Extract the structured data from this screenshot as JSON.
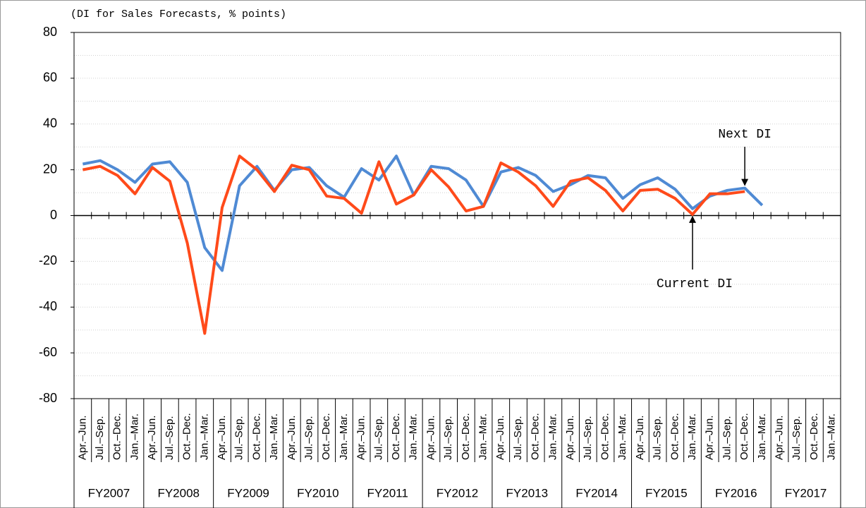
{
  "chart_data": {
    "type": "line",
    "y_axis_label": "(DI for Sales Forecasts, % points)",
    "categories": [
      "Apr.–Jun.",
      "Jul.–Sep.",
      "Oct.–Dec.",
      "Jan.–Mar.",
      "Apr.–Jun.",
      "Jul.–Sep.",
      "Oct.–Dec.",
      "Jan.–Mar.",
      "Apr.–Jun.",
      "Jul.–Sep.",
      "Oct.–Dec.",
      "Jan.–Mar.",
      "Apr.–Jun.",
      "Jul.–Sep.",
      "Oct.–Dec.",
      "Jan.–Mar.",
      "Apr.–Jun.",
      "Jul.–Sep.",
      "Oct.–Dec.",
      "Jan.–Mar.",
      "Apr.–Jun.",
      "Jul.–Sep.",
      "Oct.–Dec.",
      "Jan.–Mar.",
      "Apr.–Jun.",
      "Jul.–Sep.",
      "Oct.–Dec.",
      "Jan.–Mar.",
      "Apr.–Jun.",
      "Jul.–Sep.",
      "Oct.–Dec.",
      "Jan.–Mar.",
      "Apr.–Jun.",
      "Jul.–Sep.",
      "Oct.–Dec.",
      "Jan.–Mar.",
      "Apr.–Jun.",
      "Jul.–Sep.",
      "Oct.–Dec.",
      "Jan.–Mar.",
      "Apr.–Jun.",
      "Jul.–Sep.",
      "Oct.–Dec.",
      "Jan.–Mar."
    ],
    "groups": [
      "FY2007",
      "FY2008",
      "FY2009",
      "FY2010",
      "FY2011",
      "FY2012",
      "FY2013",
      "FY2014",
      "FY2015",
      "FY2016",
      "FY2017"
    ],
    "series": [
      {
        "name": "Next DI",
        "color": "#4f8ad4",
        "values": [
          22.5,
          24,
          20,
          14.5,
          22.5,
          23.5,
          14.5,
          -14,
          -24,
          13,
          21.5,
          11,
          20,
          21,
          13,
          8,
          20.5,
          15.5,
          26,
          9,
          21.5,
          20.5,
          15.5,
          4,
          19,
          21,
          17.5,
          10.5,
          13.5,
          17.5,
          16.5,
          7.5,
          13.5,
          16.5,
          11.5,
          3,
          8.5,
          11,
          12,
          4.5,
          null,
          null,
          null,
          null
        ]
      },
      {
        "name": "Current DI",
        "color": "#ff4a1a",
        "values": [
          20,
          21.5,
          17.5,
          9.5,
          21,
          15,
          -12,
          -51.5,
          3.5,
          26,
          20,
          10.5,
          22,
          20,
          8.5,
          7.5,
          1,
          23.5,
          5,
          9,
          20,
          12.5,
          2,
          4,
          23,
          19,
          13,
          4,
          15,
          16.5,
          11,
          2,
          11,
          11.5,
          7.5,
          0.5,
          9.5,
          9.5,
          10.5,
          null,
          null,
          null,
          null,
          null
        ]
      }
    ],
    "ylim": [
      -80,
      80
    ],
    "yticks": [
      -80,
      -60,
      -40,
      -20,
      0,
      20,
      40,
      60,
      80
    ],
    "minor_grid": [
      -70,
      -50,
      -30,
      -10,
      10,
      30,
      50,
      70
    ],
    "grid": true
  }
}
